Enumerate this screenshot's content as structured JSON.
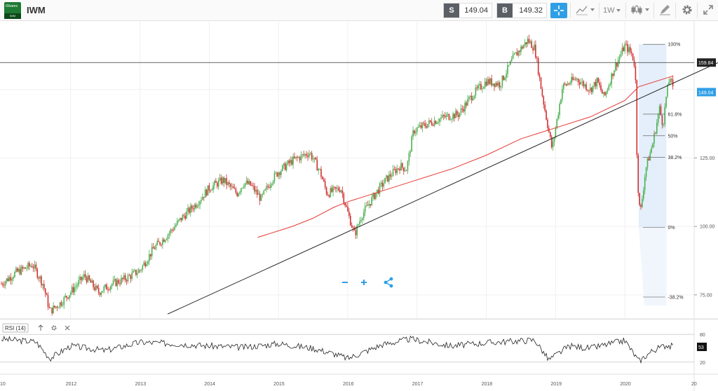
{
  "header": {
    "logo_top_text": "iShares",
    "logo_bottom_text": "IWM",
    "symbol": "IWM",
    "sell_label": "S",
    "sell_price": "149.04",
    "buy_label": "B",
    "buy_price": "149.32",
    "timeframe": "1W"
  },
  "colors": {
    "accent": "#2e9fe6",
    "up_candle": "#4caf50",
    "down_candle": "#d32f2f",
    "moving_average": "#e53935",
    "trendline": "#222222",
    "fib_fill": "#dbe9f9",
    "last_price_badge": "#2e9fe6"
  },
  "icons": {
    "logo": "ishares-logo-icon",
    "crosshair": "crosshair-icon",
    "chart_type": "line-chart-icon",
    "candles": "candlestick-icon",
    "draw": "pencil-icon",
    "settings": "gear-icon",
    "fullscreen": "expand-icon",
    "zoom_out": "minus-icon",
    "zoom_in": "plus-icon",
    "share": "share-icon",
    "rsi_up": "arrow-up-icon",
    "rsi_settings": "gear-icon",
    "rsi_close": "close-icon"
  },
  "price_axis": {
    "ticks": [
      "125.00",
      "100.00",
      "75.00"
    ],
    "horizontal_line_label": "159.84",
    "last_price_label": "149.04"
  },
  "fib_levels": [
    {
      "label": "100%",
      "value": 166.5
    },
    {
      "label": "61.8%",
      "value": 141.0
    },
    {
      "label": "50%",
      "value": 133.1
    },
    {
      "label": "38.2%",
      "value": 125.2
    },
    {
      "label": "0%",
      "value": 99.7
    },
    {
      "label": "-38.2%",
      "value": 74.2
    }
  ],
  "rsi": {
    "label": "RSI (14)",
    "upper": "80",
    "lower": "20",
    "current": "53"
  },
  "time_axis": [
    "10",
    "2012",
    "2013",
    "2014",
    "2015",
    "2016",
    "2017",
    "2018",
    "2019",
    "2020",
    "20"
  ],
  "chart_data": {
    "type": "candlestick",
    "symbol": "IWM",
    "interval": "1W",
    "ylim": [
      66,
      175
    ],
    "x_range": [
      2010.98,
      2021.0
    ],
    "horizontal_line": 159.84,
    "last_price": 149.04,
    "close_series": [
      [
        2011.0,
        79
      ],
      [
        2011.2,
        83
      ],
      [
        2011.45,
        86
      ],
      [
        2011.6,
        79
      ],
      [
        2011.7,
        69
      ],
      [
        2011.85,
        72
      ],
      [
        2012.0,
        76
      ],
      [
        2012.2,
        82
      ],
      [
        2012.4,
        76
      ],
      [
        2012.6,
        79
      ],
      [
        2012.8,
        81
      ],
      [
        2013.0,
        84
      ],
      [
        2013.2,
        92
      ],
      [
        2013.4,
        97
      ],
      [
        2013.6,
        103
      ],
      [
        2013.8,
        108
      ],
      [
        2014.0,
        114
      ],
      [
        2014.2,
        117
      ],
      [
        2014.4,
        112
      ],
      [
        2014.5,
        116
      ],
      [
        2014.6,
        115
      ],
      [
        2014.75,
        110
      ],
      [
        2014.9,
        117
      ],
      [
        2015.0,
        120
      ],
      [
        2015.2,
        124
      ],
      [
        2015.45,
        127
      ],
      [
        2015.6,
        120
      ],
      [
        2015.7,
        112
      ],
      [
        2015.9,
        114
      ],
      [
        2016.0,
        105
      ],
      [
        2016.1,
        97
      ],
      [
        2016.2,
        104
      ],
      [
        2016.4,
        112
      ],
      [
        2016.55,
        117
      ],
      [
        2016.75,
        122
      ],
      [
        2016.85,
        121
      ],
      [
        2016.95,
        135
      ],
      [
        2017.2,
        138
      ],
      [
        2017.4,
        140
      ],
      [
        2017.6,
        141
      ],
      [
        2017.8,
        148
      ],
      [
        2018.0,
        153
      ],
      [
        2018.2,
        152
      ],
      [
        2018.4,
        162
      ],
      [
        2018.6,
        168
      ],
      [
        2018.7,
        165
      ],
      [
        2018.8,
        149
      ],
      [
        2018.95,
        128
      ],
      [
        2019.0,
        136
      ],
      [
        2019.1,
        151
      ],
      [
        2019.3,
        154
      ],
      [
        2019.5,
        150
      ],
      [
        2019.6,
        153
      ],
      [
        2019.7,
        147
      ],
      [
        2019.85,
        158
      ],
      [
        2020.0,
        166
      ],
      [
        2020.1,
        163
      ],
      [
        2020.15,
        158
      ],
      [
        2020.18,
        118
      ],
      [
        2020.22,
        104
      ],
      [
        2020.3,
        121
      ],
      [
        2020.4,
        130
      ],
      [
        2020.5,
        143
      ],
      [
        2020.55,
        137
      ],
      [
        2020.6,
        148
      ],
      [
        2020.65,
        155
      ],
      [
        2020.7,
        149.04
      ]
    ],
    "moving_average": [
      [
        2014.7,
        96
      ],
      [
        2015.2,
        100
      ],
      [
        2015.5,
        103
      ],
      [
        2015.8,
        107
      ],
      [
        2016.0,
        109
      ],
      [
        2016.5,
        113
      ],
      [
        2017.0,
        117
      ],
      [
        2017.5,
        121
      ],
      [
        2018.0,
        126
      ],
      [
        2018.5,
        132
      ],
      [
        2019.0,
        136
      ],
      [
        2019.5,
        140
      ],
      [
        2020.0,
        146
      ],
      [
        2020.2,
        151
      ],
      [
        2020.7,
        155
      ]
    ],
    "trendline": [
      [
        2013.4,
        68
      ],
      [
        2021.0,
        159.8
      ]
    ],
    "fib_retracement": {
      "high": 166.5,
      "low": 99.7,
      "x_start": 2020.2,
      "x_end": 2020.6
    },
    "rsi": {
      "ylim": [
        0,
        100
      ],
      "upper": 80,
      "lower": 20,
      "values": [
        [
          2011.0,
          70
        ],
        [
          2011.5,
          64
        ],
        [
          2011.7,
          28
        ],
        [
          2012.0,
          55
        ],
        [
          2012.5,
          45
        ],
        [
          2013.0,
          63
        ],
        [
          2013.5,
          60
        ],
        [
          2014.0,
          55
        ],
        [
          2014.5,
          52
        ],
        [
          2015.0,
          60
        ],
        [
          2015.5,
          50
        ],
        [
          2015.8,
          38
        ],
        [
          2016.0,
          28
        ],
        [
          2016.5,
          58
        ],
        [
          2016.9,
          70
        ],
        [
          2017.5,
          55
        ],
        [
          2018.0,
          62
        ],
        [
          2018.7,
          68
        ],
        [
          2018.9,
          25
        ],
        [
          2019.2,
          55
        ],
        [
          2019.5,
          50
        ],
        [
          2020.0,
          67
        ],
        [
          2020.2,
          22
        ],
        [
          2020.4,
          45
        ],
        [
          2020.6,
          57
        ],
        [
          2020.7,
          53
        ]
      ]
    }
  }
}
